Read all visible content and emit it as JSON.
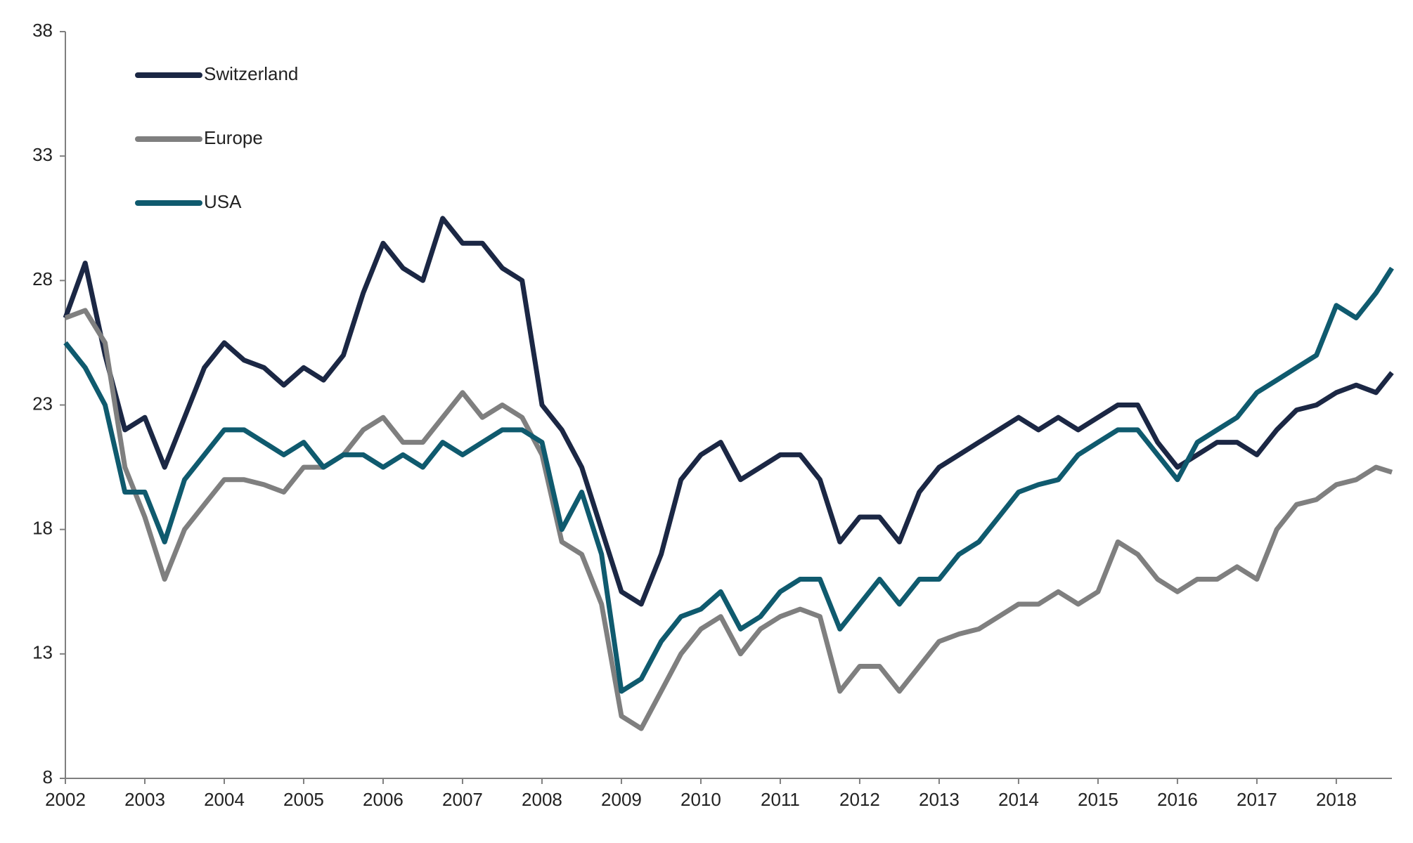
{
  "chart_data": {
    "type": "line",
    "x": [
      2002.0,
      2002.25,
      2002.5,
      2002.75,
      2003.0,
      2003.25,
      2003.5,
      2003.75,
      2004.0,
      2004.25,
      2004.5,
      2004.75,
      2005.0,
      2005.25,
      2005.5,
      2005.75,
      2006.0,
      2006.25,
      2006.5,
      2006.75,
      2007.0,
      2007.25,
      2007.5,
      2007.75,
      2008.0,
      2008.25,
      2008.5,
      2008.75,
      2009.0,
      2009.25,
      2009.5,
      2009.75,
      2010.0,
      2010.25,
      2010.5,
      2010.75,
      2011.0,
      2011.25,
      2011.5,
      2011.75,
      2012.0,
      2012.25,
      2012.5,
      2012.75,
      2013.0,
      2013.25,
      2013.5,
      2013.75,
      2014.0,
      2014.25,
      2014.5,
      2014.75,
      2015.0,
      2015.25,
      2015.5,
      2015.75,
      2016.0,
      2016.25,
      2016.5,
      2016.75,
      2017.0,
      2017.25,
      2017.5,
      2017.75,
      2018.0,
      2018.25,
      2018.5,
      2018.7
    ],
    "series": [
      {
        "name": "Switzerland",
        "color": "#1b2744",
        "values": [
          26.5,
          28.7,
          25.0,
          22.0,
          22.5,
          20.5,
          22.5,
          24.5,
          25.5,
          24.8,
          24.5,
          23.8,
          24.5,
          24.0,
          25.0,
          27.5,
          29.5,
          28.5,
          28.0,
          30.5,
          29.5,
          29.5,
          28.5,
          28.0,
          23.0,
          22.0,
          20.5,
          18.0,
          15.5,
          15.0,
          17.0,
          20.0,
          21.0,
          21.5,
          20.0,
          20.5,
          21.0,
          21.0,
          20.0,
          17.5,
          18.5,
          18.5,
          17.5,
          19.5,
          20.5,
          21.0,
          21.5,
          22.0,
          22.5,
          22.0,
          22.5,
          22.0,
          22.5,
          23.0,
          23.0,
          21.5,
          20.5,
          21.0,
          21.5,
          21.5,
          21.0,
          22.0,
          22.8,
          23.0,
          23.5,
          23.8,
          23.5,
          24.3
        ]
      },
      {
        "name": "Europe",
        "color": "#7f7f7f",
        "values": [
          26.5,
          26.8,
          25.5,
          20.5,
          18.5,
          16.0,
          18.0,
          19.0,
          20.0,
          20.0,
          19.8,
          19.5,
          20.5,
          20.5,
          21.0,
          22.0,
          22.5,
          21.5,
          21.5,
          22.5,
          23.5,
          22.5,
          23.0,
          22.5,
          21.0,
          17.5,
          17.0,
          15.0,
          10.5,
          10.0,
          11.5,
          13.0,
          14.0,
          14.5,
          13.0,
          14.0,
          14.5,
          14.8,
          14.5,
          11.5,
          12.5,
          12.5,
          11.5,
          12.5,
          13.5,
          13.8,
          14.0,
          14.5,
          15.0,
          15.0,
          15.5,
          15.0,
          15.5,
          17.5,
          17.0,
          16.0,
          15.5,
          16.0,
          16.0,
          16.5,
          16.0,
          18.0,
          19.0,
          19.2,
          19.8,
          20.0,
          20.5,
          20.3
        ]
      },
      {
        "name": "USA",
        "color": "#0f5a6e",
        "values": [
          25.5,
          24.5,
          23.0,
          19.5,
          19.5,
          17.5,
          20.0,
          21.0,
          22.0,
          22.0,
          21.5,
          21.0,
          21.5,
          20.5,
          21.0,
          21.0,
          20.5,
          21.0,
          20.5,
          21.5,
          21.0,
          21.5,
          22.0,
          22.0,
          21.5,
          18.0,
          19.5,
          17.0,
          11.5,
          12.0,
          13.5,
          14.5,
          14.8,
          15.5,
          14.0,
          14.5,
          15.5,
          16.0,
          16.0,
          14.0,
          15.0,
          16.0,
          15.0,
          16.0,
          16.0,
          17.0,
          17.5,
          18.5,
          19.5,
          19.8,
          20.0,
          21.0,
          21.5,
          22.0,
          22.0,
          21.0,
          20.0,
          21.5,
          22.0,
          22.5,
          23.5,
          24.0,
          24.5,
          25.0,
          27.0,
          26.5,
          27.5,
          28.5
        ]
      }
    ],
    "xlim": [
      2002,
      2018.7
    ],
    "xticks": [
      2002,
      2003,
      2004,
      2005,
      2006,
      2007,
      2008,
      2009,
      2010,
      2011,
      2012,
      2013,
      2014,
      2015,
      2016,
      2017,
      2018
    ],
    "ylim": [
      8,
      38
    ],
    "yticks": [
      8,
      13,
      18,
      23,
      28,
      33,
      38
    ],
    "legend": "top-left"
  }
}
